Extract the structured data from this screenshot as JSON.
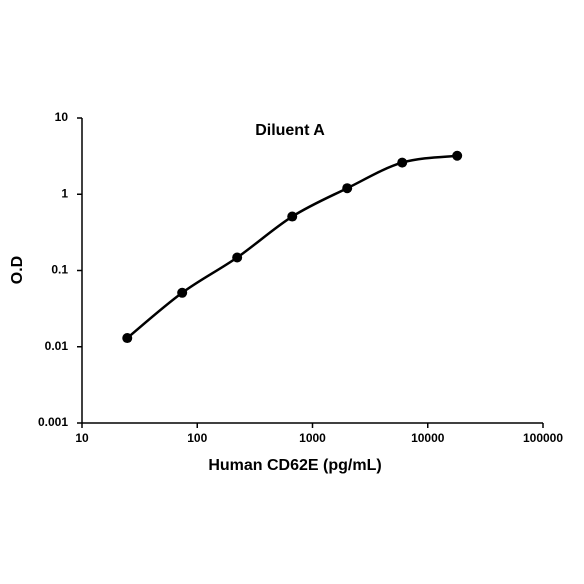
{
  "chart_data": {
    "type": "line",
    "title": "Diluent A",
    "x_label": "Human CD62E (pg/mL)",
    "y_label": "O.D",
    "x": [
      24.7,
      74,
      222,
      667,
      2000,
      6000,
      18000
    ],
    "series": [
      {
        "name": "Diluent A",
        "color": "#000000",
        "values": [
          0.013,
          0.051,
          0.148,
          0.51,
          1.2,
          2.6,
          3.2
        ]
      }
    ],
    "xscale": "log",
    "yscale": "log",
    "xlim": [
      10,
      100000
    ],
    "xticks": [
      10,
      100,
      1000,
      10000,
      100000
    ],
    "ylim": [
      0.001,
      10
    ],
    "yticks": [
      0.001,
      0.01,
      0.1,
      1,
      10
    ],
    "grid": false
  }
}
